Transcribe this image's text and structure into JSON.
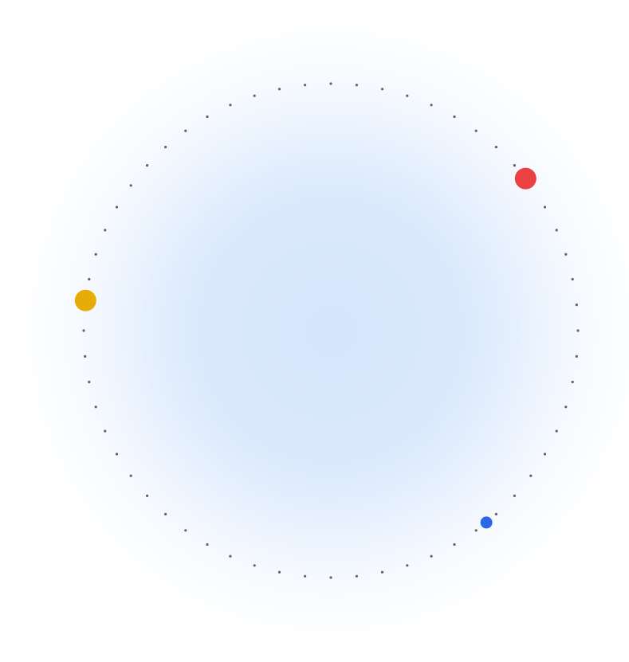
{
  "colors": {
    "glow": "#d7e7fc",
    "dot": "#5f6368",
    "red_marker": "#ea4242",
    "yellow_marker": "#e6ac07",
    "blue_marker": "#2b66e6"
  },
  "ring": {
    "dot_count": 60,
    "style": "dotted circle"
  },
  "markers": [
    {
      "name": "red-marker",
      "color": "red",
      "angle_deg": -38
    },
    {
      "name": "yellow-marker",
      "color": "yellow",
      "angle_deg": 187
    },
    {
      "name": "blue-marker",
      "color": "blue",
      "angle_deg": 51
    }
  ]
}
